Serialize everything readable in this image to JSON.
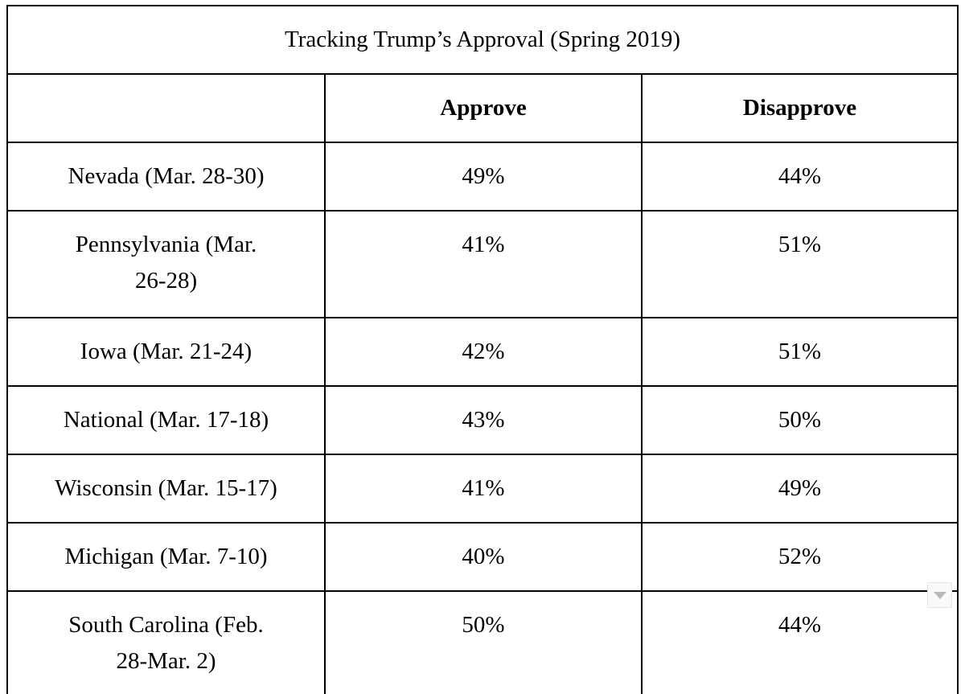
{
  "table": {
    "title": "Tracking Trump’s Approval (Spring 2019)",
    "columns": [
      "",
      "Approve",
      "Disapprove"
    ],
    "rows": [
      {
        "label": "Nevada (Mar. 28-30)",
        "approve": "49%",
        "disapprove": "44%",
        "tall": false
      },
      {
        "label": "Pennsylvania (Mar.\n26-28)",
        "approve": "41%",
        "disapprove": "51%",
        "tall": true
      },
      {
        "label": "Iowa (Mar. 21-24)",
        "approve": "42%",
        "disapprove": "51%",
        "tall": false
      },
      {
        "label": "National (Mar. 17-18)",
        "approve": "43%",
        "disapprove": "50%",
        "tall": false
      },
      {
        "label": "Wisconsin (Mar. 15-17)",
        "approve": "41%",
        "disapprove": "49%",
        "tall": false
      },
      {
        "label": "Michigan (Mar. 7-10)",
        "approve": "40%",
        "disapprove": "52%",
        "tall": false
      },
      {
        "label": "South Carolina (Feb.\n28-Mar. 2)",
        "approve": "50%",
        "disapprove": "44%",
        "tall": true
      }
    ]
  },
  "widget": {
    "scroll_down_icon": "triangle-down"
  },
  "colors": {
    "border": "#000000",
    "text": "#000000",
    "background": "#ffffff",
    "widget_bg": "#f9f9f9",
    "widget_border": "#e6e6e6",
    "widget_arrow": "#b9b9b9"
  },
  "chart_data": {
    "type": "table",
    "title": "Tracking Trump’s Approval (Spring 2019)",
    "columns": [
      "",
      "Approve",
      "Disapprove"
    ],
    "categories": [
      "Nevada (Mar. 28-30)",
      "Pennsylvania (Mar. 26-28)",
      "Iowa (Mar. 21-24)",
      "National (Mar. 17-18)",
      "Wisconsin (Mar. 15-17)",
      "Michigan (Mar. 7-10)",
      "South Carolina (Feb. 28-Mar. 2)"
    ],
    "series": [
      {
        "name": "Approve",
        "values": [
          49,
          41,
          42,
          43,
          41,
          40,
          50
        ]
      },
      {
        "name": "Disapprove",
        "values": [
          44,
          51,
          51,
          50,
          49,
          52,
          44
        ]
      }
    ],
    "units": "%",
    "layout": "bordered grid table, 3 columns, title row spans all columns, serif font, all cells center-aligned"
  }
}
